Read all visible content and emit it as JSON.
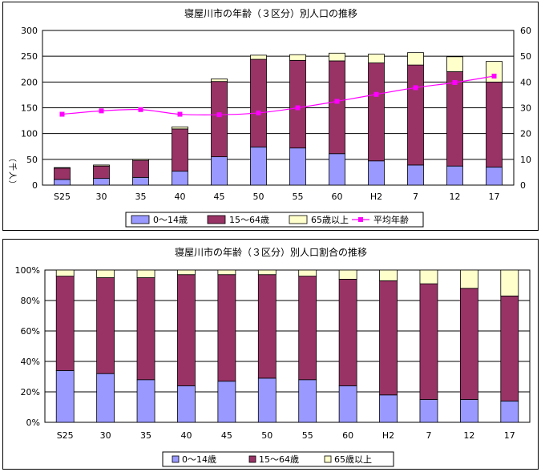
{
  "charts": [
    {
      "title": "寝屋川市の年齢（３区分）別人口の推移",
      "ylabel": "（千人）",
      "y_ticks": [
        "0",
        "50",
        "100",
        "150",
        "200",
        "250",
        "300"
      ],
      "y2_ticks": [
        "0",
        "10",
        "20",
        "30",
        "40",
        "50",
        "60"
      ]
    },
    {
      "title": "寝屋川市の年齢（３区分）別人口割合の推移",
      "y_ticks": [
        "0%",
        "20%",
        "40%",
        "60%",
        "80%",
        "100%"
      ]
    }
  ],
  "chart_data": [
    {
      "type": "bar",
      "stacked": true,
      "title": "寝屋川市の年齢（３区分）別人口の推移",
      "xlabel": "",
      "ylabel": "（千人）",
      "categories": [
        "S25",
        "30",
        "35",
        "40",
        "45",
        "50",
        "55",
        "60",
        "H2",
        "7",
        "12",
        "17"
      ],
      "ylim": [
        0,
        300
      ],
      "y2lim": [
        0,
        60
      ],
      "grid": true,
      "legend": "bottom",
      "series": [
        {
          "name": "0～14歳",
          "color": "#9999ff",
          "values": [
            11,
            13,
            15,
            27,
            55,
            74,
            72,
            61,
            47,
            39,
            37,
            35
          ]
        },
        {
          "name": "15～64歳",
          "color": "#993366",
          "values": [
            22,
            24,
            33,
            82,
            146,
            170,
            170,
            180,
            190,
            194,
            183,
            165
          ]
        },
        {
          "name": "65歳以上",
          "color": "#ffffcc",
          "values": [
            1,
            2,
            2,
            4,
            5,
            8,
            11,
            15,
            17,
            24,
            29,
            40
          ]
        },
        {
          "name": "平均年齢",
          "type": "line",
          "axis": "right",
          "color": "#ff00ff",
          "values": [
            27.5,
            28.8,
            29.3,
            27.5,
            27.3,
            28.0,
            30.0,
            32.5,
            35.2,
            37.8,
            39.8,
            42.3
          ]
        }
      ]
    },
    {
      "type": "bar",
      "stacked": true,
      "title": "寝屋川市の年齢（３区分）別人口割合の推移",
      "xlabel": "",
      "ylabel": "",
      "categories": [
        "S25",
        "30",
        "35",
        "40",
        "45",
        "50",
        "55",
        "60",
        "H2",
        "7",
        "12",
        "17"
      ],
      "ylim": [
        0,
        100
      ],
      "grid": true,
      "legend": "bottom",
      "series": [
        {
          "name": "0～14歳",
          "color": "#9999ff",
          "values": [
            34,
            32,
            28,
            24,
            27,
            29,
            28,
            24,
            18,
            15,
            15,
            14
          ]
        },
        {
          "name": "15～64歳",
          "color": "#993366",
          "values": [
            62,
            63,
            67,
            73,
            70,
            68,
            68,
            70,
            75,
            76,
            73,
            69
          ]
        },
        {
          "name": "65歳以上",
          "color": "#ffffcc",
          "values": [
            4,
            5,
            5,
            3,
            3,
            3,
            4,
            6,
            7,
            9,
            12,
            17
          ]
        }
      ]
    }
  ]
}
